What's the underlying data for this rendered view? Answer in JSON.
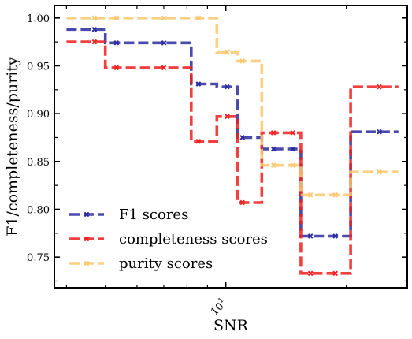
{
  "chart_data": {
    "type": "line",
    "step": "post",
    "xscale": "log",
    "xlabel": "SNR",
    "ylabel": "F1/completeness/purity",
    "xlim": [
      3.73,
      28.4
    ],
    "ylim": [
      0.718,
      1.013
    ],
    "yticks": [
      0.75,
      0.8,
      0.85,
      0.9,
      0.95,
      1.0
    ],
    "ytick_labels": [
      "0.75",
      "0.80",
      "0.85",
      "0.90",
      "0.95",
      "1.00"
    ],
    "xtick_labels": [
      {
        "base": "10",
        "exp": "1",
        "value": 10
      }
    ],
    "grid": false,
    "legend_position": "lower-left",
    "bin_edges": [
      4.0,
      5.0,
      6.7,
      8.2,
      9.5,
      10.7,
      12.3,
      13.9,
      15.4,
      17.2,
      20.5,
      27.0
    ],
    "x": [
      4.0,
      5.0,
      6.7,
      8.2,
      9.5,
      10.7,
      12.3,
      13.9,
      15.4,
      17.2,
      20.5
    ],
    "series": [
      {
        "name": "F1 scores",
        "color": "#2a2aa0",
        "values": [
          0.988,
          0.974,
          0.974,
          0.931,
          0.928,
          0.875,
          0.863,
          0.863,
          0.772,
          0.772,
          0.881
        ]
      },
      {
        "name": "completeness scores",
        "color": "#f01e1e",
        "values": [
          0.975,
          0.948,
          0.948,
          0.871,
          0.897,
          0.807,
          0.88,
          0.88,
          0.733,
          0.733,
          0.928
        ]
      },
      {
        "name": "purity scores",
        "color": "#fcc86e",
        "values": [
          1.0,
          1.0,
          1.0,
          1.0,
          0.964,
          0.955,
          0.846,
          0.846,
          0.815,
          0.815,
          0.839
        ]
      }
    ]
  }
}
